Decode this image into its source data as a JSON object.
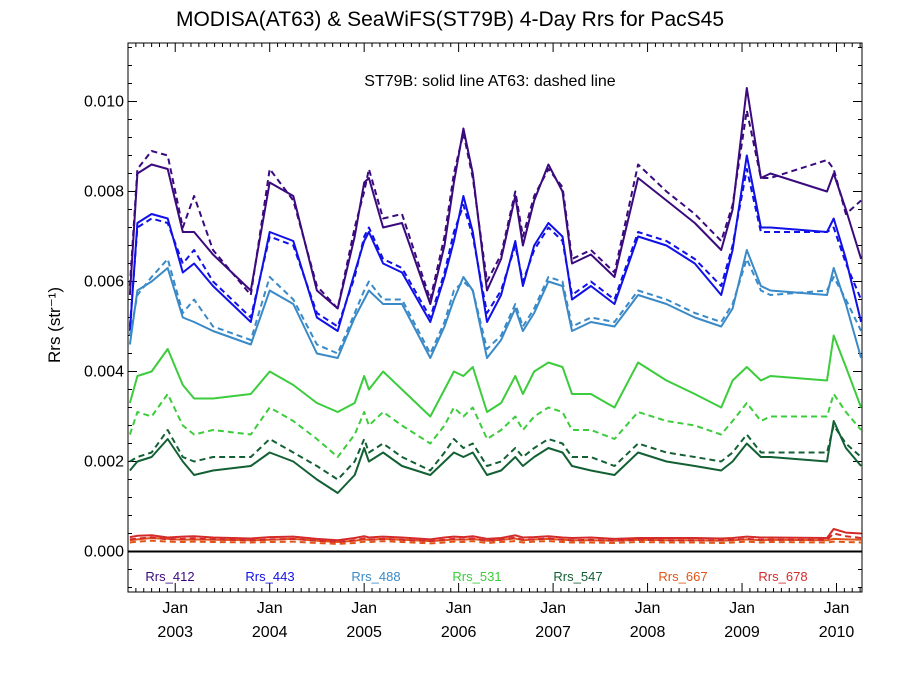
{
  "chart_data": {
    "type": "line",
    "title": "MODISA(AT63) & SeaWiFS(ST79B) 4-Day Rrs for PacS45",
    "ylabel": "Rrs (str⁻¹)",
    "xlabel": "",
    "annotation": "ST79B: solid line   AT63: dashed line",
    "xlim": [
      2002.5,
      2010.27
    ],
    "ylim": [
      -0.0009,
      0.0113
    ],
    "yticks": [
      "0.000",
      "0.002",
      "0.004",
      "0.006",
      "0.008",
      "0.010"
    ],
    "ytick_values": [
      0.0,
      0.002,
      0.004,
      0.006,
      0.008,
      0.01
    ],
    "xticks": [
      {
        "month": "Jan",
        "year": "2003"
      },
      {
        "month": "Jan",
        "year": "2004"
      },
      {
        "month": "Jan",
        "year": "2005"
      },
      {
        "month": "Jan",
        "year": "2006"
      },
      {
        "month": "Jan",
        "year": "2007"
      },
      {
        "month": "Jan",
        "year": "2008"
      },
      {
        "month": "Jan",
        "year": "2009"
      },
      {
        "month": "Jan",
        "year": "2010"
      }
    ],
    "grid": false,
    "legend_position": "bottom",
    "x": [
      2002.52,
      2002.6,
      2002.75,
      2002.92,
      2003.08,
      2003.2,
      2003.4,
      2003.8,
      2004.0,
      2004.25,
      2004.5,
      2004.72,
      2004.9,
      2005.0,
      2005.05,
      2005.2,
      2005.4,
      2005.7,
      2005.85,
      2005.95,
      2006.05,
      2006.15,
      2006.3,
      2006.45,
      2006.6,
      2006.68,
      2006.8,
      2006.95,
      2007.1,
      2007.2,
      2007.4,
      2007.65,
      2007.9,
      2008.2,
      2008.5,
      2008.78,
      2008.9,
      2009.05,
      2009.2,
      2009.3,
      2009.9,
      2009.97,
      2010.1,
      2010.26
    ],
    "series": [
      {
        "name": "Rrs_412",
        "color": "#3a0a7e",
        "solid": [
          0.0057,
          0.0084,
          0.0086,
          0.0085,
          0.0071,
          0.0071,
          0.0066,
          0.0058,
          0.0082,
          0.0079,
          0.0058,
          0.0054,
          0.007,
          0.0082,
          0.0083,
          0.0072,
          0.0073,
          0.0055,
          0.0068,
          0.0082,
          0.0094,
          0.0084,
          0.0058,
          0.0065,
          0.0079,
          0.0068,
          0.0078,
          0.0086,
          0.008,
          0.0064,
          0.0066,
          0.0061,
          0.0083,
          0.0078,
          0.0073,
          0.0067,
          0.0076,
          0.0103,
          0.0083,
          0.0084,
          0.008,
          0.0084,
          0.0076,
          0.0065
        ],
        "dashed": [
          0.0059,
          0.0085,
          0.0089,
          0.0088,
          0.0072,
          0.0079,
          0.0067,
          0.0057,
          0.0085,
          0.0078,
          0.0059,
          0.0054,
          0.0072,
          0.008,
          0.0085,
          0.0074,
          0.0075,
          0.0056,
          0.007,
          0.0084,
          0.0093,
          0.0083,
          0.006,
          0.0066,
          0.008,
          0.007,
          0.0079,
          0.0085,
          0.0081,
          0.0065,
          0.0067,
          0.0062,
          0.0086,
          0.008,
          0.0075,
          0.0069,
          0.0077,
          0.0098,
          0.0083,
          0.0083,
          0.0087,
          0.0085,
          0.0075,
          0.0078
        ]
      },
      {
        "name": "Rrs_443",
        "color": "#1010e8",
        "solid": [
          0.0049,
          0.0073,
          0.0075,
          0.0074,
          0.0062,
          0.0064,
          0.0059,
          0.0051,
          0.0071,
          0.0069,
          0.0052,
          0.0049,
          0.0062,
          0.0069,
          0.0071,
          0.0064,
          0.0062,
          0.0051,
          0.0061,
          0.0069,
          0.0079,
          0.0071,
          0.0051,
          0.0057,
          0.0069,
          0.0059,
          0.0068,
          0.0073,
          0.007,
          0.0056,
          0.0059,
          0.0055,
          0.007,
          0.0068,
          0.0064,
          0.0057,
          0.0067,
          0.0088,
          0.0072,
          0.0072,
          0.0071,
          0.0074,
          0.0065,
          0.0051
        ],
        "dashed": [
          0.005,
          0.0072,
          0.0074,
          0.0073,
          0.0064,
          0.0067,
          0.006,
          0.0052,
          0.007,
          0.0068,
          0.0053,
          0.005,
          0.0061,
          0.007,
          0.0072,
          0.0065,
          0.0063,
          0.0052,
          0.0062,
          0.0071,
          0.0077,
          0.007,
          0.0053,
          0.0058,
          0.0068,
          0.006,
          0.0067,
          0.0072,
          0.0069,
          0.0057,
          0.006,
          0.0056,
          0.0071,
          0.0069,
          0.0065,
          0.0059,
          0.0068,
          0.0085,
          0.0071,
          0.0071,
          0.0071,
          0.0072,
          0.0064,
          0.0056
        ]
      },
      {
        "name": "Rrs_488",
        "color": "#3a8ac8",
        "solid": [
          0.0046,
          0.0058,
          0.006,
          0.0063,
          0.0052,
          0.0051,
          0.0049,
          0.0046,
          0.0058,
          0.0055,
          0.0044,
          0.0043,
          0.0052,
          0.0056,
          0.0058,
          0.0055,
          0.0055,
          0.0043,
          0.005,
          0.0056,
          0.0061,
          0.0058,
          0.0043,
          0.0047,
          0.0054,
          0.0049,
          0.0053,
          0.006,
          0.0059,
          0.0049,
          0.0051,
          0.005,
          0.0057,
          0.0055,
          0.0052,
          0.005,
          0.0054,
          0.0067,
          0.0059,
          0.0058,
          0.0057,
          0.0063,
          0.0055,
          0.0043
        ],
        "dashed": [
          0.0048,
          0.0057,
          0.0061,
          0.0065,
          0.0053,
          0.0056,
          0.005,
          0.0047,
          0.0061,
          0.0056,
          0.0046,
          0.0044,
          0.0053,
          0.0058,
          0.006,
          0.0056,
          0.0056,
          0.0044,
          0.0051,
          0.0058,
          0.006,
          0.0058,
          0.0045,
          0.0048,
          0.0055,
          0.005,
          0.0054,
          0.0061,
          0.006,
          0.005,
          0.0052,
          0.0051,
          0.0058,
          0.0056,
          0.0053,
          0.0051,
          0.0055,
          0.0065,
          0.0058,
          0.0057,
          0.0058,
          0.0061,
          0.0056,
          0.0049
        ]
      },
      {
        "name": "Rrs_531",
        "color": "#3ccc3c",
        "solid": [
          0.0033,
          0.0039,
          0.004,
          0.0045,
          0.0037,
          0.0034,
          0.0034,
          0.0035,
          0.004,
          0.0037,
          0.0033,
          0.0031,
          0.0033,
          0.0039,
          0.0036,
          0.004,
          0.0036,
          0.003,
          0.0036,
          0.004,
          0.0039,
          0.0041,
          0.0031,
          0.0033,
          0.0039,
          0.0035,
          0.004,
          0.0042,
          0.0041,
          0.0035,
          0.0035,
          0.0032,
          0.0042,
          0.0038,
          0.0035,
          0.0032,
          0.0038,
          0.0041,
          0.0038,
          0.0039,
          0.0038,
          0.0048,
          0.0041,
          0.0032
        ],
        "dashed": [
          0.0026,
          0.0031,
          0.003,
          0.0035,
          0.0028,
          0.0026,
          0.0027,
          0.0026,
          0.0032,
          0.0029,
          0.0025,
          0.0021,
          0.0026,
          0.0031,
          0.0028,
          0.0031,
          0.0028,
          0.0024,
          0.0028,
          0.0032,
          0.003,
          0.0032,
          0.0025,
          0.0027,
          0.003,
          0.0027,
          0.003,
          0.0032,
          0.0031,
          0.0027,
          0.0027,
          0.0025,
          0.0031,
          0.0029,
          0.0028,
          0.0026,
          0.0029,
          0.0033,
          0.0029,
          0.003,
          0.003,
          0.0035,
          0.0031,
          0.0027
        ]
      },
      {
        "name": "Rrs_547",
        "color": "#136034",
        "solid": [
          0.0018,
          0.002,
          0.0021,
          0.0025,
          0.002,
          0.0017,
          0.0018,
          0.0019,
          0.0022,
          0.002,
          0.0016,
          0.0013,
          0.0017,
          0.0023,
          0.002,
          0.0022,
          0.0019,
          0.0017,
          0.002,
          0.0022,
          0.0021,
          0.0022,
          0.0017,
          0.0018,
          0.0021,
          0.0019,
          0.0021,
          0.0023,
          0.0022,
          0.0019,
          0.0018,
          0.0017,
          0.0022,
          0.002,
          0.0019,
          0.0018,
          0.002,
          0.0024,
          0.0021,
          0.0021,
          0.002,
          0.0029,
          0.0023,
          0.0019
        ],
        "dashed": [
          0.002,
          0.0021,
          0.0022,
          0.0027,
          0.0021,
          0.002,
          0.0021,
          0.0021,
          0.0025,
          0.0022,
          0.0019,
          0.0016,
          0.002,
          0.0025,
          0.0022,
          0.0024,
          0.0021,
          0.0018,
          0.0022,
          0.0025,
          0.0023,
          0.0024,
          0.0019,
          0.002,
          0.0023,
          0.0021,
          0.0023,
          0.0025,
          0.0024,
          0.0021,
          0.0021,
          0.0019,
          0.0024,
          0.0022,
          0.0021,
          0.002,
          0.0022,
          0.0026,
          0.0022,
          0.0022,
          0.0022,
          0.0028,
          0.0024,
          0.0021
        ]
      },
      {
        "name": "Rrs_667",
        "color": "#e05418",
        "solid": [
          0.00025,
          0.00027,
          0.0003,
          0.00028,
          0.00026,
          0.00027,
          0.00026,
          0.00025,
          0.00026,
          0.00028,
          0.00024,
          0.00021,
          0.00024,
          0.00027,
          0.00026,
          0.00028,
          0.00026,
          0.00023,
          0.00025,
          0.00027,
          0.00026,
          0.00028,
          0.00024,
          0.00026,
          0.00029,
          0.00025,
          0.00027,
          0.00028,
          0.00026,
          0.00025,
          0.00025,
          0.00024,
          0.00026,
          0.00025,
          0.00025,
          0.00024,
          0.00025,
          0.00027,
          0.00025,
          0.00026,
          0.00025,
          0.00028,
          0.00027,
          0.00026
        ],
        "dashed": [
          0.0002,
          0.00022,
          0.00024,
          0.00022,
          0.00021,
          0.00022,
          0.00021,
          0.0002,
          0.00021,
          0.00022,
          0.00019,
          0.00017,
          0.00019,
          0.00022,
          0.00021,
          0.00023,
          0.00021,
          0.00018,
          0.0002,
          0.00022,
          0.00021,
          0.00023,
          0.00019,
          0.00021,
          0.00023,
          0.0002,
          0.00022,
          0.00023,
          0.00021,
          0.0002,
          0.0002,
          0.00019,
          0.00021,
          0.0002,
          0.0002,
          0.00019,
          0.0002,
          0.00022,
          0.0002,
          0.00021,
          0.0002,
          0.00022,
          0.00021,
          0.0002
        ]
      },
      {
        "name": "Rrs_678",
        "color": "#d42a2a",
        "solid": [
          0.00032,
          0.00035,
          0.00036,
          0.00031,
          0.00033,
          0.00034,
          0.00031,
          0.00029,
          0.00032,
          0.00033,
          0.00028,
          0.00025,
          0.0003,
          0.00034,
          0.00031,
          0.00033,
          0.00031,
          0.00027,
          0.00031,
          0.00033,
          0.00032,
          0.00034,
          0.00028,
          0.0003,
          0.00036,
          0.00031,
          0.00032,
          0.00034,
          0.00031,
          0.0003,
          0.00031,
          0.00028,
          0.0003,
          0.0003,
          0.0003,
          0.00029,
          0.0003,
          0.00033,
          0.00031,
          0.00031,
          0.0003,
          0.0005,
          0.00042,
          0.0004
        ],
        "dashed": [
          0.00027,
          0.00029,
          0.00031,
          0.00027,
          0.00028,
          0.00029,
          0.00027,
          0.00025,
          0.00027,
          0.00028,
          0.00024,
          0.00021,
          0.00025,
          0.00029,
          0.00026,
          0.00028,
          0.00026,
          0.00023,
          0.00026,
          0.00028,
          0.00027,
          0.00029,
          0.00024,
          0.00026,
          0.00031,
          0.00026,
          0.00027,
          0.00029,
          0.00026,
          0.00025,
          0.00026,
          0.00024,
          0.00026,
          0.00025,
          0.00025,
          0.00025,
          0.00026,
          0.00028,
          0.00026,
          0.00026,
          0.00026,
          0.0004,
          0.00034,
          0.0003
        ]
      }
    ]
  }
}
